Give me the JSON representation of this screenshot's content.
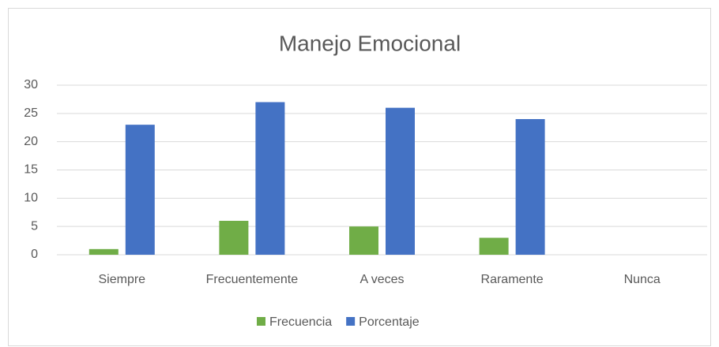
{
  "chart_data": {
    "type": "bar",
    "title": "Manejo Emocional",
    "categories": [
      "Siempre",
      "Frecuentemente",
      "A veces",
      "Raramente",
      "Nunca"
    ],
    "series": [
      {
        "name": "Frecuencia",
        "color": "#70ad47",
        "values": [
          1,
          6,
          5,
          3,
          0
        ]
      },
      {
        "name": "Porcentaje",
        "color": "#4472c4",
        "values": [
          23,
          27,
          26,
          24,
          0
        ]
      }
    ],
    "ylim": [
      0,
      30
    ],
    "yticks": [
      0,
      5,
      10,
      15,
      20,
      25,
      30
    ],
    "grid": true,
    "legend": "bottom"
  }
}
